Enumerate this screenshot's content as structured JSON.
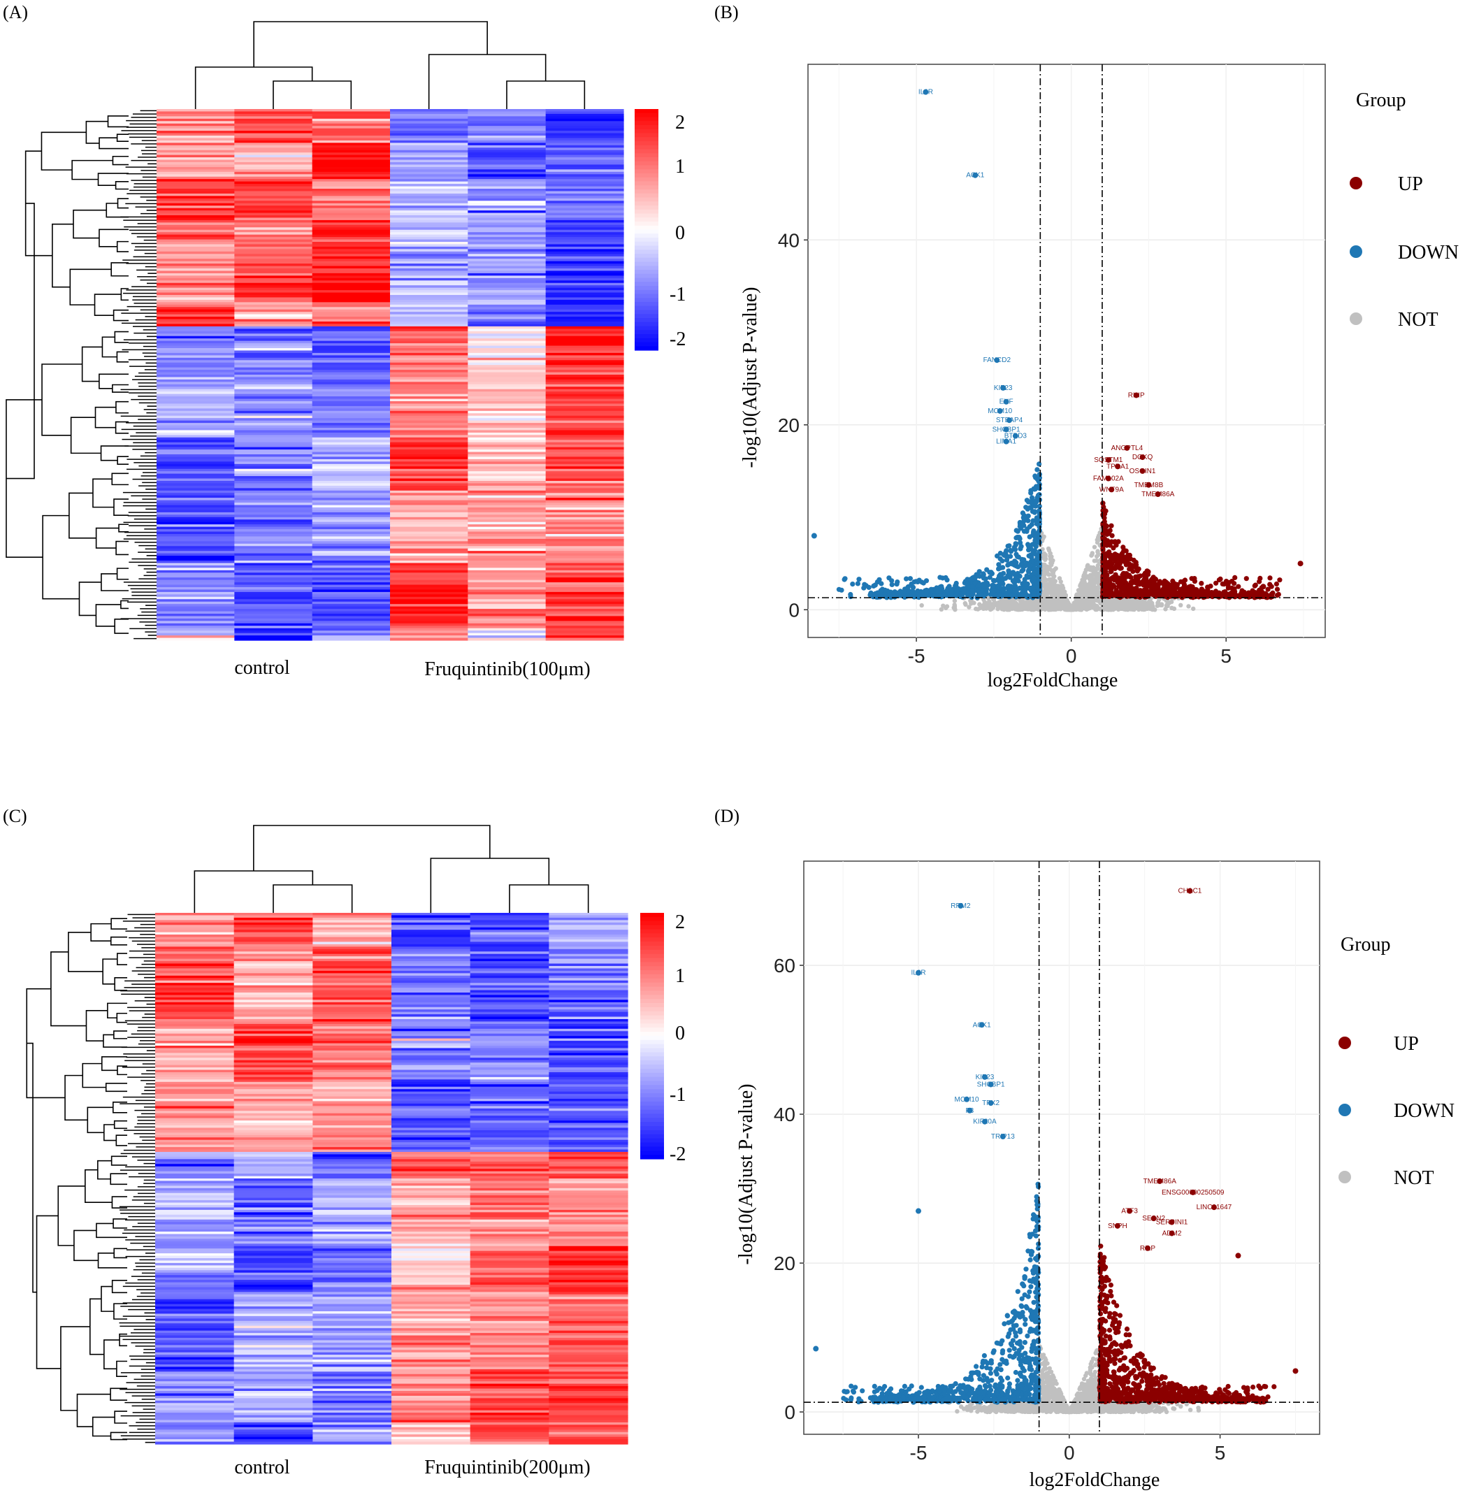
{
  "figure": {
    "panels": [
      "(A)",
      "(B)",
      "(C)",
      "(D)"
    ]
  },
  "colors": {
    "up": "#8b0000",
    "down": "#1f77b4",
    "not": "#c0c0c0",
    "heat_high": "#ff0000",
    "heat_mid": "#ffffff",
    "heat_low": "#0000ff",
    "grid": "#ebebeb"
  },
  "chart_data": [
    {
      "id": "A",
      "type": "heatmap",
      "title": "",
      "column_groups": [
        "control",
        "Fruquintinib(100μm)"
      ],
      "columns": 6,
      "colorbar": {
        "ticks": [
          "2",
          "1",
          "0",
          "-1",
          "-2"
        ],
        "range": [
          -2,
          2
        ]
      },
      "row_blocks": [
        {
          "fraction": 0.41,
          "means": [
            1.3,
            1.1,
            1.6,
            -0.7,
            -1.2,
            -1.2
          ]
        },
        {
          "fraction": 0.59,
          "means": [
            -1.0,
            -0.9,
            -0.9,
            1.2,
            0.4,
            1.2
          ]
        }
      ]
    },
    {
      "id": "B",
      "type": "scatter",
      "xlabel": "log2FoldChange",
      "ylabel": "-log10(Adjust P-value)",
      "xlim": [
        -8.5,
        8.2
      ],
      "ylim": [
        -3,
        59
      ],
      "xticks": [
        "-5",
        "0",
        "5"
      ],
      "yticks": [
        "0",
        "20",
        "40"
      ],
      "thresholds": {
        "x": [
          -1,
          1
        ],
        "y": 1.3
      },
      "legend": {
        "title": "Group",
        "entries": [
          "UP",
          "DOWN",
          "NOT"
        ]
      },
      "labeled_points": [
        {
          "label": "IL6R",
          "x": -4.7,
          "y": 56,
          "group": "DOWN"
        },
        {
          "label": "ACK1",
          "x": -3.1,
          "y": 47,
          "group": "DOWN"
        },
        {
          "label": "FANCD2",
          "x": -2.4,
          "y": 27,
          "group": "DOWN"
        },
        {
          "label": "KIF23",
          "x": -2.2,
          "y": 24,
          "group": "DOWN"
        },
        {
          "label": "EHF",
          "x": -2.1,
          "y": 22.5,
          "group": "DOWN"
        },
        {
          "label": "MCM10",
          "x": -2.3,
          "y": 21.5,
          "group": "DOWN"
        },
        {
          "label": "STEAP4",
          "x": -2.0,
          "y": 20.5,
          "group": "DOWN"
        },
        {
          "label": "SHCBP1",
          "x": -2.1,
          "y": 19.5,
          "group": "DOWN"
        },
        {
          "label": "BTBD3",
          "x": -1.8,
          "y": 18.8,
          "group": "DOWN"
        },
        {
          "label": "LIMA1",
          "x": -2.1,
          "y": 18.2,
          "group": "DOWN"
        },
        {
          "label": "RHIP",
          "x": 2.1,
          "y": 23.2,
          "group": "UP"
        },
        {
          "label": "ANGPTL4",
          "x": 1.8,
          "y": 17.5,
          "group": "UP"
        },
        {
          "label": "DGKQ",
          "x": 2.3,
          "y": 16.5,
          "group": "UP"
        },
        {
          "label": "SQSTM1",
          "x": 1.2,
          "y": 16.2,
          "group": "UP"
        },
        {
          "label": "TPRA1",
          "x": 1.5,
          "y": 15.5,
          "group": "UP"
        },
        {
          "label": "OSGIN1",
          "x": 2.3,
          "y": 15.0,
          "group": "UP"
        },
        {
          "label": "FAM102A",
          "x": 1.2,
          "y": 14.2,
          "group": "UP"
        },
        {
          "label": "TMEM8B",
          "x": 2.5,
          "y": 13.5,
          "group": "UP"
        },
        {
          "label": "WNT9A",
          "x": 1.3,
          "y": 13.0,
          "group": "UP"
        },
        {
          "label": "TMEM86A",
          "x": 2.8,
          "y": 12.5,
          "group": "UP"
        }
      ],
      "outliers": [
        {
          "x": -8.3,
          "y": 8,
          "group": "DOWN"
        },
        {
          "x": 7.4,
          "y": 5,
          "group": "UP"
        },
        {
          "x": 6.2,
          "y": 2.5,
          "group": "UP"
        }
      ]
    },
    {
      "id": "C",
      "type": "heatmap",
      "title": "",
      "column_groups": [
        "control",
        "Fruquintinib(200μm)"
      ],
      "columns": 6,
      "colorbar": {
        "ticks": [
          "2",
          "1",
          "0",
          "-1",
          "-2"
        ],
        "range": [
          -2,
          2
        ]
      },
      "row_blocks": [
        {
          "fraction": 0.45,
          "means": [
            1.1,
            1.0,
            1.1,
            -1.2,
            -1.0,
            -1.1
          ]
        },
        {
          "fraction": 0.55,
          "means": [
            -0.9,
            -1.0,
            -0.8,
            0.9,
            1.1,
            1.3
          ]
        }
      ]
    },
    {
      "id": "D",
      "type": "scatter",
      "xlabel": "log2FoldChange",
      "ylabel": "-log10(Adjust P-value)",
      "xlim": [
        -8.8,
        8.3
      ],
      "ylim": [
        -3,
        74
      ],
      "xticks": [
        "-5",
        "0",
        "5"
      ],
      "yticks": [
        "0",
        "20",
        "40",
        "60"
      ],
      "thresholds": {
        "x": [
          -1,
          1
        ],
        "y": 1.3
      },
      "legend": {
        "title": "Group",
        "entries": [
          "UP",
          "DOWN",
          "NOT"
        ]
      },
      "labeled_points": [
        {
          "label": "CHAC1",
          "x": 4.0,
          "y": 70,
          "group": "UP"
        },
        {
          "label": "RRM2",
          "x": -3.6,
          "y": 68,
          "group": "DOWN"
        },
        {
          "label": "IL6R",
          "x": -5.0,
          "y": 59,
          "group": "DOWN"
        },
        {
          "label": "ACK1",
          "x": -2.9,
          "y": 52,
          "group": "DOWN"
        },
        {
          "label": "KIF23",
          "x": -2.8,
          "y": 45,
          "group": "DOWN"
        },
        {
          "label": "SHCBP1",
          "x": -2.6,
          "y": 44,
          "group": "DOWN"
        },
        {
          "label": "MCM10",
          "x": -3.4,
          "y": 42,
          "group": "DOWN"
        },
        {
          "label": "TPX2",
          "x": -2.6,
          "y": 41.5,
          "group": "DOWN"
        },
        {
          "label": "F3",
          "x": -3.3,
          "y": 40.5,
          "group": "DOWN"
        },
        {
          "label": "KIF20A",
          "x": -2.8,
          "y": 39,
          "group": "DOWN"
        },
        {
          "label": "TRIP13",
          "x": -2.2,
          "y": 37,
          "group": "DOWN"
        },
        {
          "label": "TMEM86A",
          "x": 3.0,
          "y": 31,
          "group": "UP"
        },
        {
          "label": "ENSG00000250509",
          "x": 4.1,
          "y": 29.5,
          "group": "UP"
        },
        {
          "label": "LINC01647",
          "x": 4.8,
          "y": 27.5,
          "group": "UP"
        },
        {
          "label": "ATF3",
          "x": 2.0,
          "y": 27,
          "group": "UP"
        },
        {
          "label": "SESN2",
          "x": 2.8,
          "y": 26,
          "group": "UP"
        },
        {
          "label": "SERPINI1",
          "x": 3.4,
          "y": 25.5,
          "group": "UP"
        },
        {
          "label": "SNPH",
          "x": 1.6,
          "y": 25,
          "group": "UP"
        },
        {
          "label": "ADM2",
          "x": 3.4,
          "y": 24,
          "group": "UP"
        },
        {
          "label": "RILP",
          "x": 2.6,
          "y": 22,
          "group": "UP"
        }
      ],
      "outliers": [
        {
          "x": -5.0,
          "y": 27,
          "group": "DOWN"
        },
        {
          "x": -8.4,
          "y": 8.5,
          "group": "DOWN"
        },
        {
          "x": 5.6,
          "y": 21,
          "group": "UP"
        },
        {
          "x": 7.5,
          "y": 5.5,
          "group": "UP"
        }
      ]
    }
  ]
}
